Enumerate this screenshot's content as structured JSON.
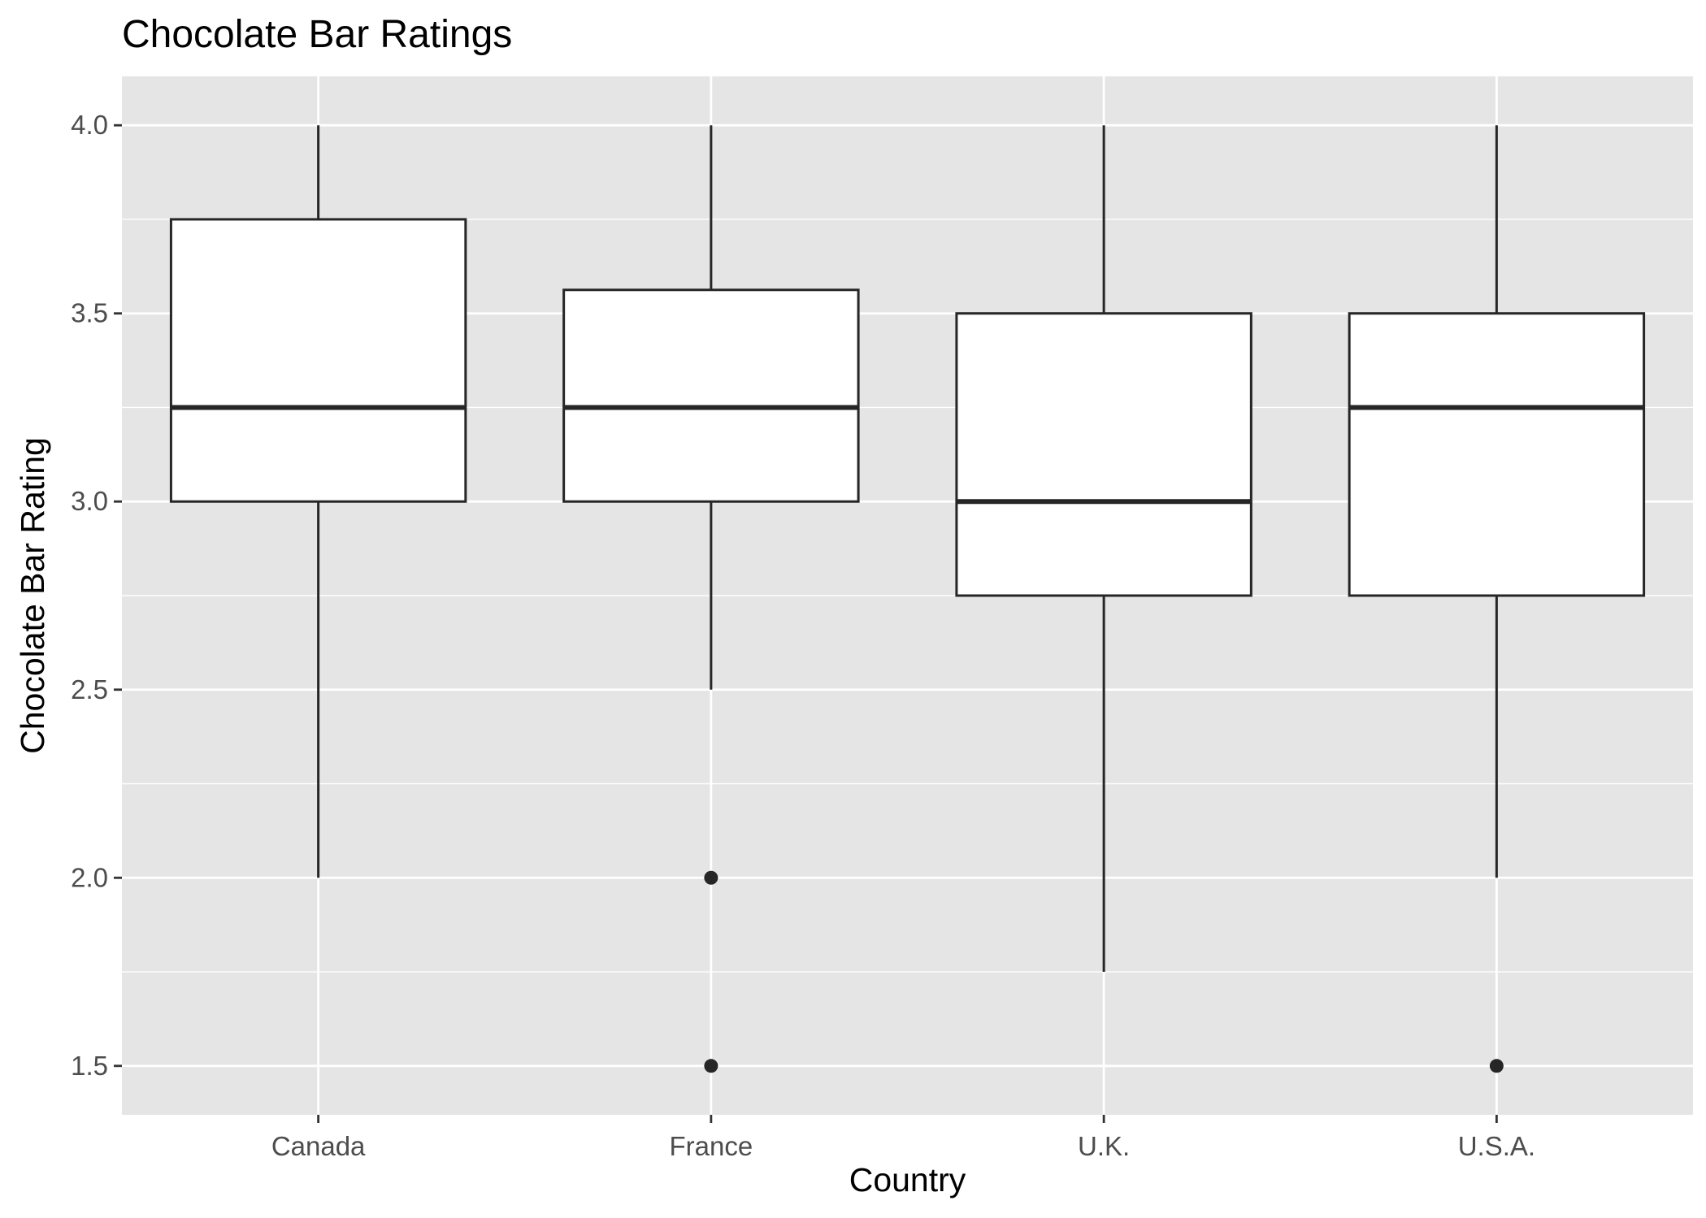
{
  "chart_data": {
    "type": "boxplot",
    "title": "Chocolate Bar Ratings",
    "xlabel": "Country",
    "ylabel": "Chocolate Bar Rating",
    "categories": [
      "Canada",
      "France",
      "U.K.",
      "U.S.A."
    ],
    "ylim": [
      1.37,
      4.13
    ],
    "yticks": [
      "1.5",
      "2.0",
      "2.5",
      "3.0",
      "3.5",
      "4.0"
    ],
    "grid": true,
    "boxes": [
      {
        "category": "Canada",
        "whisker_low": 2.0,
        "q1": 3.0,
        "median": 3.25,
        "q3": 3.75,
        "whisker_high": 4.0,
        "outliers": []
      },
      {
        "category": "France",
        "whisker_low": 2.5,
        "q1": 3.0,
        "median": 3.25,
        "q3": 3.5625,
        "whisker_high": 4.0,
        "outliers": [
          2.0,
          1.5
        ]
      },
      {
        "category": "U.K.",
        "whisker_low": 1.75,
        "q1": 2.75,
        "median": 3.0,
        "q3": 3.5,
        "whisker_high": 4.0,
        "outliers": []
      },
      {
        "category": "U.S.A.",
        "whisker_low": 2.0,
        "q1": 2.75,
        "median": 3.25,
        "q3": 3.5,
        "whisker_high": 4.0,
        "outliers": [
          1.5
        ]
      }
    ],
    "colors": {
      "panel_background": "#e5e5e5",
      "grid_line": "#ffffff",
      "box_fill": "#ffffff",
      "box_stroke": "#262626",
      "outlier": "#262626",
      "tick_text": "#4d4d4d",
      "title_text": "#000000"
    }
  }
}
